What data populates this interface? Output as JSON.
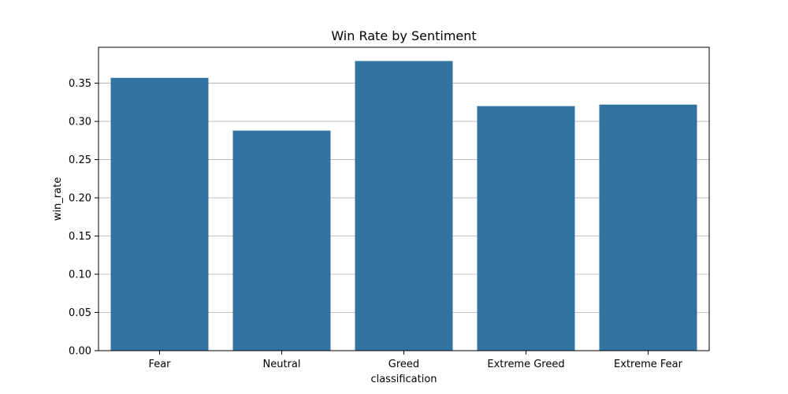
{
  "chart_data": {
    "type": "bar",
    "title": "Win Rate by Sentiment",
    "xlabel": "classification",
    "ylabel": "win_rate",
    "categories": [
      "Fear",
      "Neutral",
      "Greed",
      "Extreme Greed",
      "Extreme Fear"
    ],
    "values": [
      0.357,
      0.288,
      0.379,
      0.32,
      0.322
    ],
    "ylim": [
      0,
      0.397
    ],
    "yticks": [
      "0.00",
      "0.05",
      "0.10",
      "0.15",
      "0.20",
      "0.25",
      "0.30",
      "0.35"
    ],
    "grid": "y-axis only",
    "legend": "none",
    "bar_color": "#3274a1",
    "grid_color": "#b0b0b0"
  }
}
